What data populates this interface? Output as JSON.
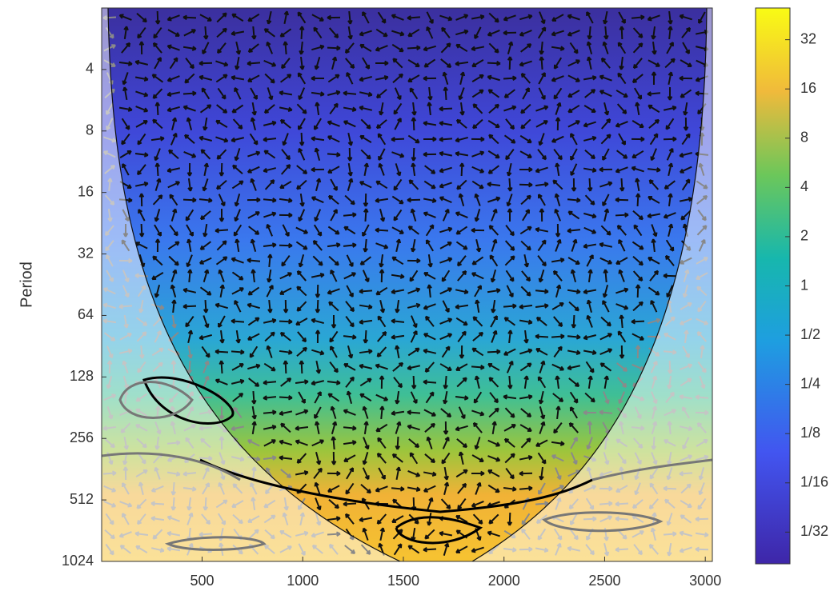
{
  "chart_data": {
    "type": "heatmap",
    "ylabel": "Period",
    "xlim": [
      1,
      3035
    ],
    "xticks": [
      500,
      1000,
      1500,
      2000,
      2500,
      3000
    ],
    "ylim": [
      2,
      1024
    ],
    "yscale": "log",
    "yticks": [
      4,
      8,
      16,
      32,
      64,
      128,
      256,
      512,
      1024
    ],
    "colorbar": {
      "lim": [
        0.02,
        50
      ],
      "scale": "log",
      "ticks": [
        32,
        16,
        8,
        4,
        2,
        1,
        {
          "value": 0.5,
          "label": "1/2"
        },
        {
          "value": 0.25,
          "label": "1/4"
        },
        {
          "value": 0.125,
          "label": "1/8"
        },
        {
          "value": 0.0625,
          "label": "1/16"
        },
        {
          "value": 0.03125,
          "label": "1/32"
        }
      ]
    }
  }
}
